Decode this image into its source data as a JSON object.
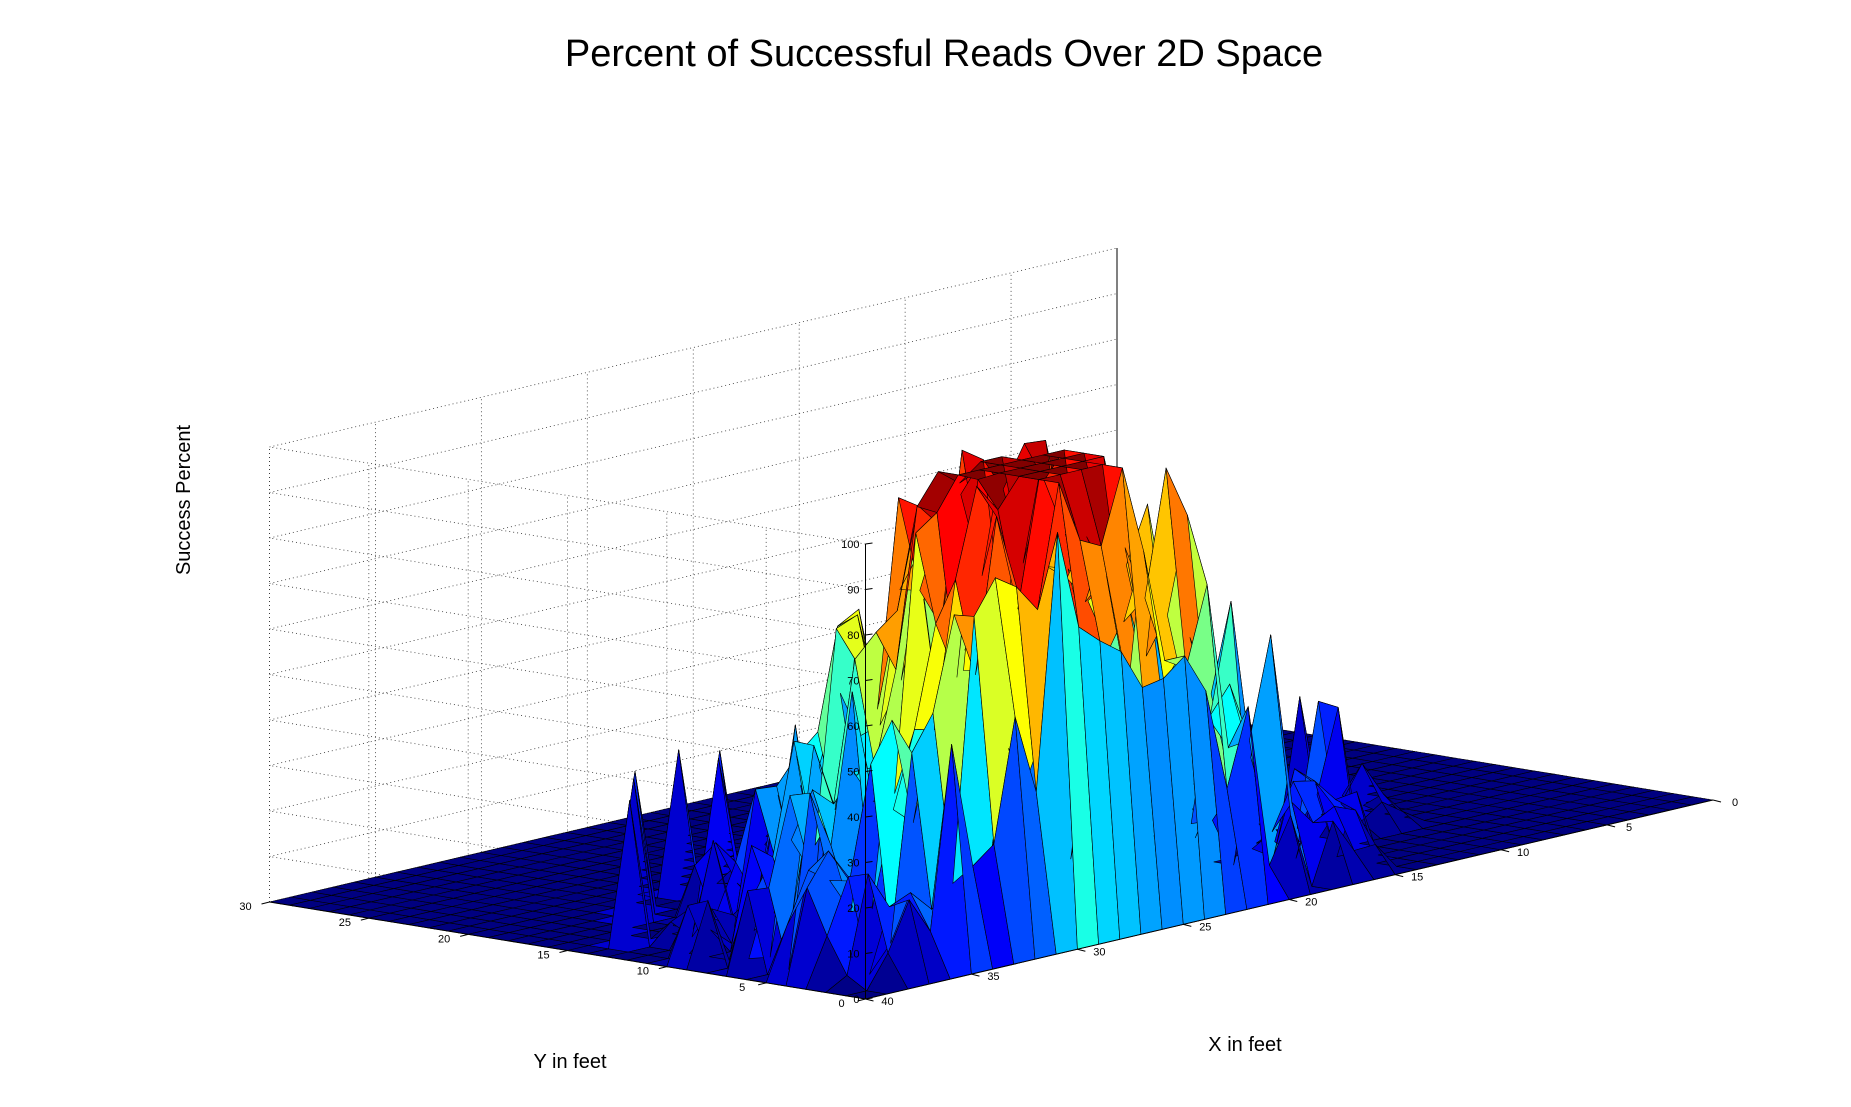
{
  "chart_data": {
    "type": "surface",
    "title": "Percent of Successful Reads Over 2D Space",
    "xlabel": "X in feet",
    "ylabel": "Y in feet",
    "zlabel": "Success Percent",
    "xlim": [
      0,
      40
    ],
    "ylim": [
      0,
      30
    ],
    "zlim": [
      0,
      100
    ],
    "x_ticks": [
      "0",
      "5",
      "10",
      "15",
      "20",
      "25",
      "30",
      "35",
      "40"
    ],
    "y_ticks": [
      "0",
      "5",
      "10",
      "15",
      "20",
      "25",
      "30"
    ],
    "z_ticks": [
      "0",
      "10",
      "20",
      "30",
      "40",
      "50",
      "60",
      "70",
      "80",
      "90",
      "100"
    ],
    "x_tick_values": [
      0,
      5,
      10,
      15,
      20,
      25,
      30,
      35,
      40
    ],
    "y_tick_values": [
      0,
      5,
      10,
      15,
      20,
      25,
      30
    ],
    "z_tick_values": [
      0,
      10,
      20,
      30,
      40,
      50,
      60,
      70,
      80,
      90,
      100
    ],
    "grid": true,
    "colormap": "jet",
    "peak": {
      "x": 27,
      "y": 5,
      "value": 100
    },
    "grid_step": 1
  }
}
